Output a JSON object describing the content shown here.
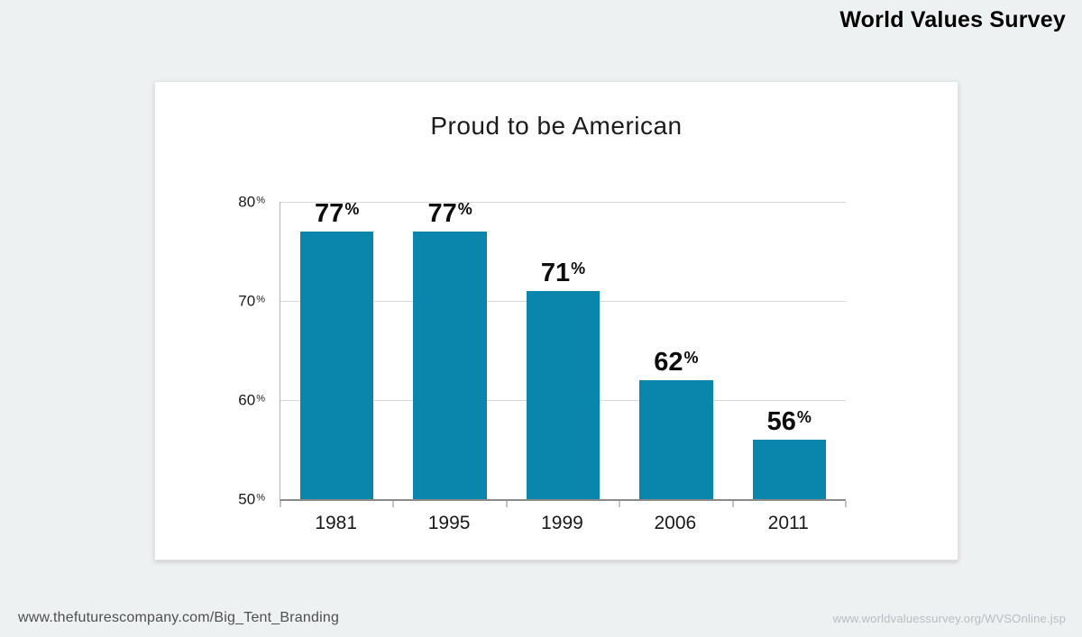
{
  "page": {
    "header_title": "World Values Survey",
    "footer_left": "www.thefuturescompany.com/Big_Tent_Branding",
    "footer_right": "www.worldvaluessurvey.org/WVSOnline.jsp"
  },
  "chart_data": {
    "type": "bar",
    "title": "Proud to be American",
    "categories": [
      "1981",
      "1995",
      "1999",
      "2006",
      "2011"
    ],
    "values": [
      77,
      77,
      71,
      62,
      56
    ],
    "data_labels": [
      "77%",
      "77%",
      "71%",
      "62%",
      "56%"
    ],
    "xlabel": "",
    "ylabel": "",
    "ylim": [
      50,
      80
    ],
    "yticks": [
      80,
      70,
      60,
      50
    ],
    "ytick_labels": [
      "80%",
      "70%",
      "60%",
      "50%"
    ],
    "bar_color": "#0a86ad",
    "grid": true,
    "legend": false
  }
}
